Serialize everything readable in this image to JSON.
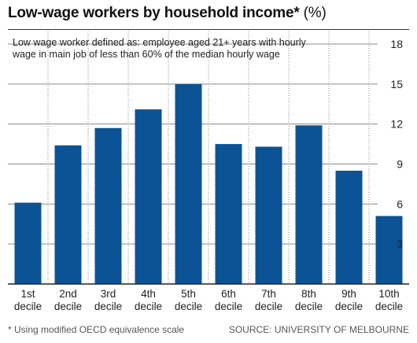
{
  "title": "Low-wage workers by household income*",
  "title_unit": "(%)",
  "subtitle": "Low wage worker defined as: employee aged 21+ years with hourly wage in main job of less than 60% of the median hourly wage",
  "footnote": "* Using modified OECD equivalence scale",
  "source": "SOURCE: UNIVERSITY OF MELBOURNE",
  "colors": {
    "bar": "#0b5394",
    "grid": "#8a8a8a",
    "axis": "#222222"
  },
  "chart_data": {
    "type": "bar",
    "categories": [
      [
        "1st",
        "decile"
      ],
      [
        "2nd",
        "decile"
      ],
      [
        "3rd",
        "decile"
      ],
      [
        "4th",
        "decile"
      ],
      [
        "5th",
        "decile"
      ],
      [
        "6th",
        "decile"
      ],
      [
        "7th",
        "decile"
      ],
      [
        "8th",
        "decile"
      ],
      [
        "9th",
        "decile"
      ],
      [
        "10th",
        "decile"
      ]
    ],
    "values": [
      6.1,
      10.4,
      11.7,
      13.1,
      15.0,
      10.5,
      10.3,
      11.9,
      8.5,
      5.1
    ],
    "yticks": [
      3,
      6,
      9,
      12,
      15,
      18
    ],
    "ylim": [
      0,
      18
    ],
    "yaxis_side": "right",
    "grid": true
  }
}
